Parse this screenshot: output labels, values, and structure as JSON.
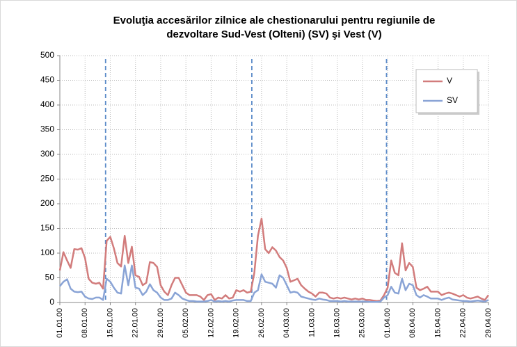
{
  "chart_data": {
    "type": "line",
    "title": [
      "Evoluţia accesărilor zilnice ale chestionarului pentru regiunile de",
      "dezvoltare Sud-Vest (Olteni) (SV) şi Vest (V)"
    ],
    "categories": [
      "01.01.00",
      null,
      null,
      null,
      null,
      null,
      null,
      "08.01.00",
      null,
      null,
      null,
      null,
      null,
      null,
      "15.01.00",
      null,
      null,
      null,
      null,
      null,
      null,
      "22.01.00",
      null,
      null,
      null,
      null,
      null,
      null,
      "29.01.00",
      null,
      null,
      null,
      null,
      null,
      null,
      "05.02.00",
      null,
      null,
      null,
      null,
      null,
      null,
      "12.02.00",
      null,
      null,
      null,
      null,
      null,
      null,
      "19.02.00",
      null,
      null,
      null,
      null,
      null,
      null,
      "26.02.00",
      null,
      null,
      null,
      null,
      null,
      null,
      "04.03.00",
      null,
      null,
      null,
      null,
      null,
      null,
      "11.03.00",
      null,
      null,
      null,
      null,
      null,
      null,
      "18.03.00",
      null,
      null,
      null,
      null,
      null,
      null,
      "25.03.00",
      null,
      null,
      null,
      null,
      null,
      null,
      "01.04.00",
      null,
      null,
      null,
      null,
      null,
      null,
      "08.04.00",
      null,
      null,
      null,
      null,
      null,
      null,
      "15.04.00",
      null,
      null,
      null,
      null,
      null,
      null,
      "22.04.00",
      null,
      null,
      null,
      null,
      null,
      null,
      "29.04.00"
    ],
    "series": [
      {
        "name": "V",
        "color": "#d27c7c",
        "values": [
          65,
          102,
          85,
          70,
          108,
          107,
          110,
          90,
          48,
          40,
          38,
          40,
          28,
          125,
          133,
          110,
          80,
          73,
          135,
          80,
          113,
          55,
          52,
          35,
          40,
          82,
          80,
          72,
          35,
          22,
          15,
          35,
          50,
          50,
          35,
          20,
          15,
          15,
          15,
          12,
          5,
          15,
          17,
          5,
          10,
          8,
          15,
          8,
          10,
          25,
          22,
          25,
          20,
          22,
          60,
          135,
          170,
          108,
          100,
          112,
          105,
          92,
          85,
          70,
          42,
          45,
          48,
          35,
          28,
          22,
          18,
          12,
          20,
          20,
          18,
          10,
          8,
          10,
          8,
          10,
          8,
          6,
          8,
          6,
          8,
          5,
          5,
          4,
          3,
          4,
          15,
          30,
          85,
          60,
          55,
          120,
          65,
          80,
          72,
          30,
          25,
          28,
          32,
          22,
          22,
          22,
          15,
          18,
          20,
          18,
          15,
          12,
          15,
          10,
          8,
          10,
          12,
          8,
          5,
          15
        ]
      },
      {
        "name": "SV",
        "color": "#8aa4d6",
        "values": [
          33,
          42,
          47,
          28,
          22,
          21,
          22,
          12,
          8,
          7,
          10,
          10,
          5,
          48,
          42,
          30,
          20,
          18,
          75,
          35,
          75,
          30,
          28,
          15,
          22,
          37,
          25,
          20,
          10,
          5,
          5,
          8,
          20,
          15,
          8,
          5,
          3,
          3,
          2,
          2,
          2,
          3,
          5,
          2,
          3,
          2,
          3,
          2,
          4,
          5,
          5,
          5,
          3,
          3,
          20,
          25,
          57,
          42,
          40,
          38,
          30,
          55,
          50,
          35,
          20,
          22,
          20,
          12,
          10,
          8,
          6,
          5,
          8,
          6,
          5,
          3,
          3,
          3,
          2,
          3,
          2,
          2,
          2,
          2,
          2,
          2,
          1,
          1,
          1,
          2,
          10,
          15,
          32,
          20,
          18,
          48,
          25,
          38,
          35,
          15,
          10,
          15,
          12,
          8,
          8,
          8,
          5,
          8,
          10,
          6,
          5,
          4,
          3,
          3,
          2,
          3,
          4,
          3,
          2,
          5
        ]
      }
    ],
    "ylim": [
      0,
      500
    ],
    "yticks": [
      0,
      50,
      100,
      150,
      200,
      250,
      300,
      350,
      400,
      450,
      500
    ],
    "grid": true,
    "legend": "top-right",
    "vertical_lines": [
      12.7,
      53.3,
      90.7
    ]
  }
}
